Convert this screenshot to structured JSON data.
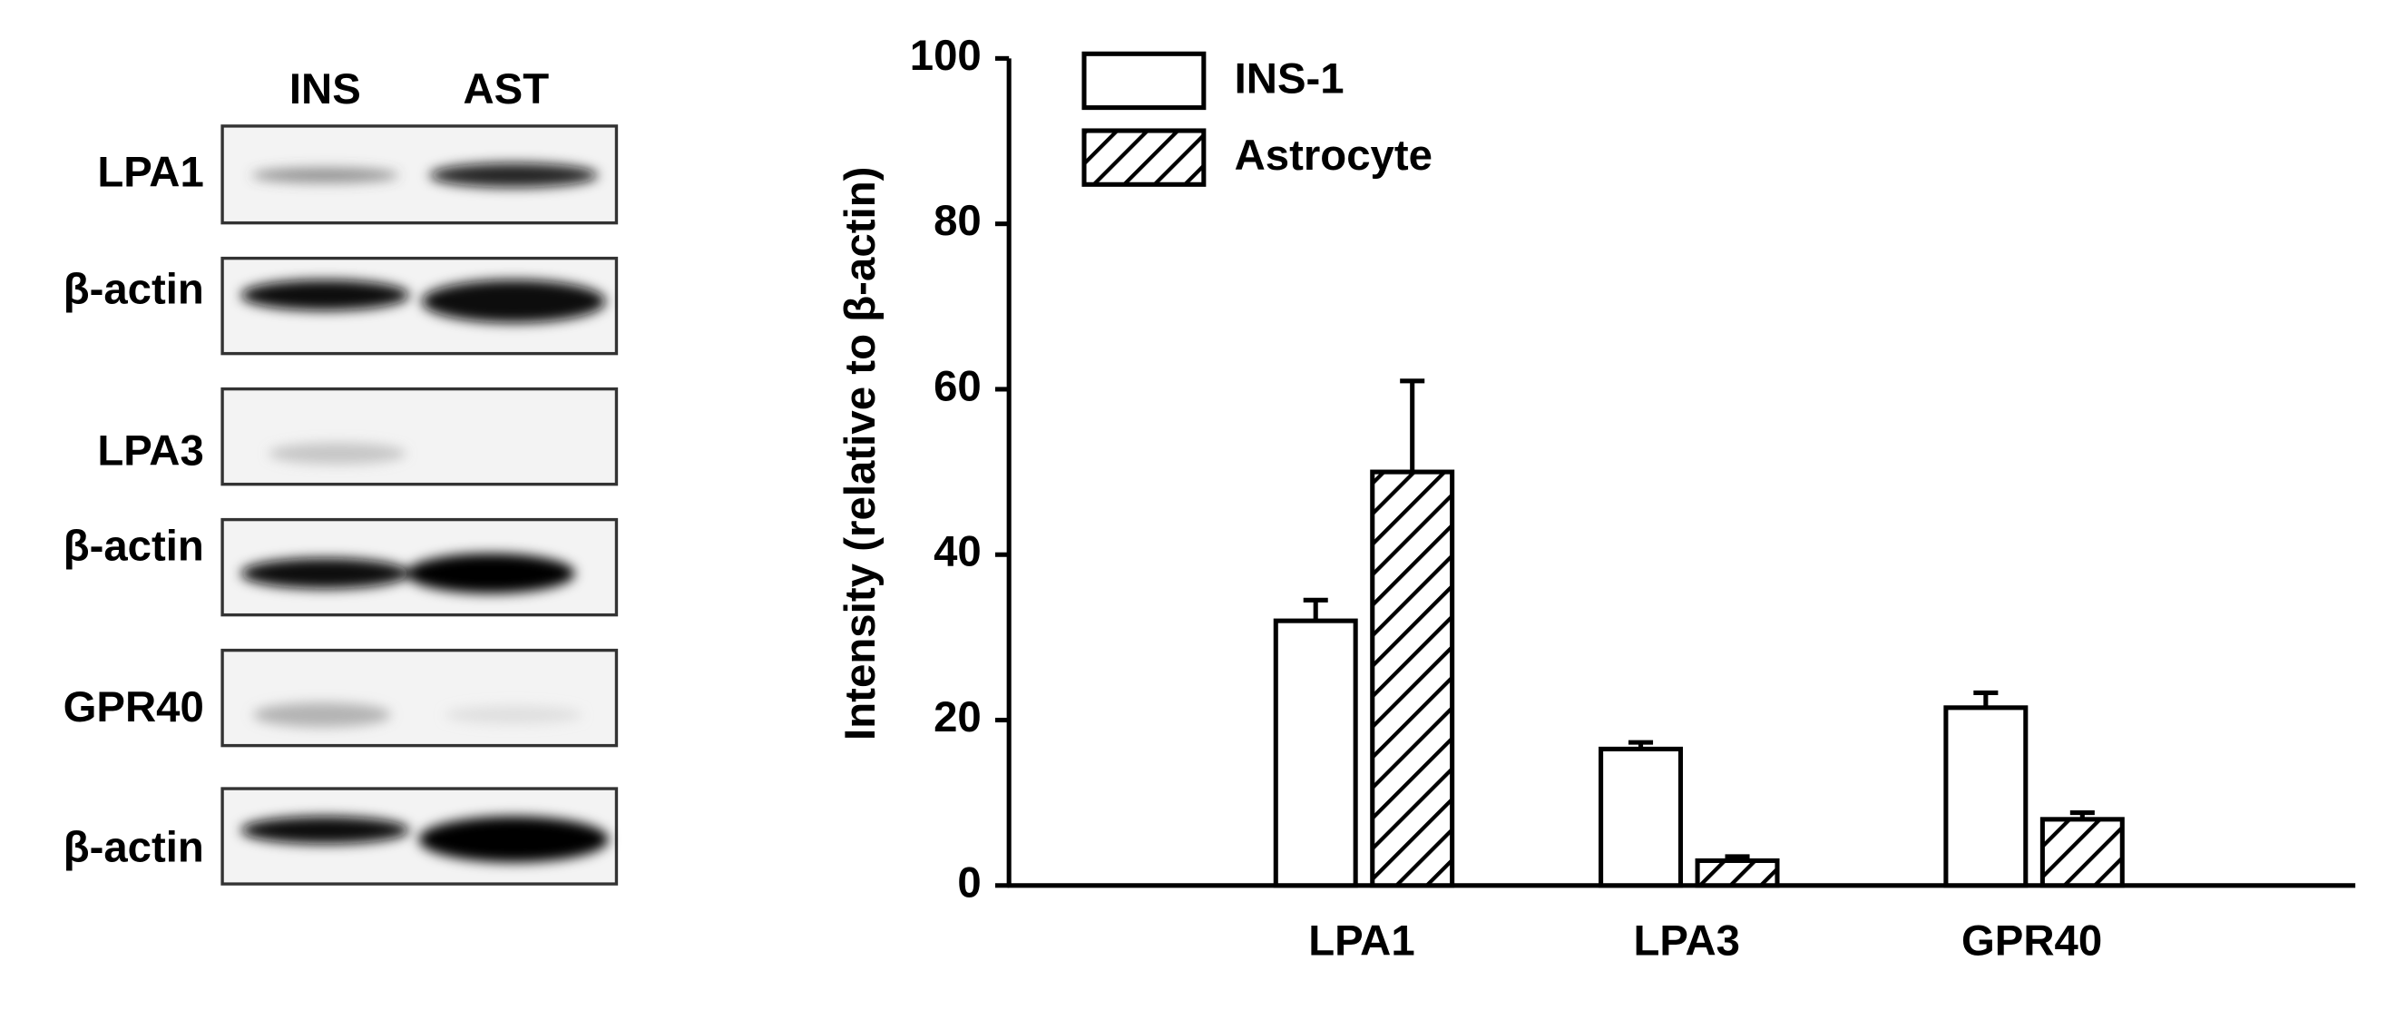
{
  "chart_data": {
    "type": "bar",
    "ylabel": "Intensity (relative to β-actin)",
    "categories": [
      "LPA1",
      "LPA3",
      "GPR40"
    ],
    "series": [
      {
        "name": "INS-1",
        "color": "#ffffff",
        "pattern": "none",
        "values": [
          32,
          16.5,
          21.5
        ],
        "errors": [
          2.5,
          0.8,
          1.8
        ]
      },
      {
        "name": "Astrocyte",
        "color": "#ffffff",
        "pattern": "hatch",
        "values": [
          50,
          3,
          8
        ],
        "errors": [
          11,
          0.5,
          0.8
        ]
      }
    ],
    "ylim": [
      0,
      100
    ],
    "yticks": [
      0,
      20,
      40,
      60,
      80,
      100
    ],
    "grid": false,
    "legend": "top-left"
  },
  "blot": {
    "lanes": [
      "INS",
      "AST"
    ],
    "rows": [
      "LPA1",
      "β-actin",
      "LPA3",
      "β-actin",
      "GPR40",
      "β-actin"
    ]
  }
}
